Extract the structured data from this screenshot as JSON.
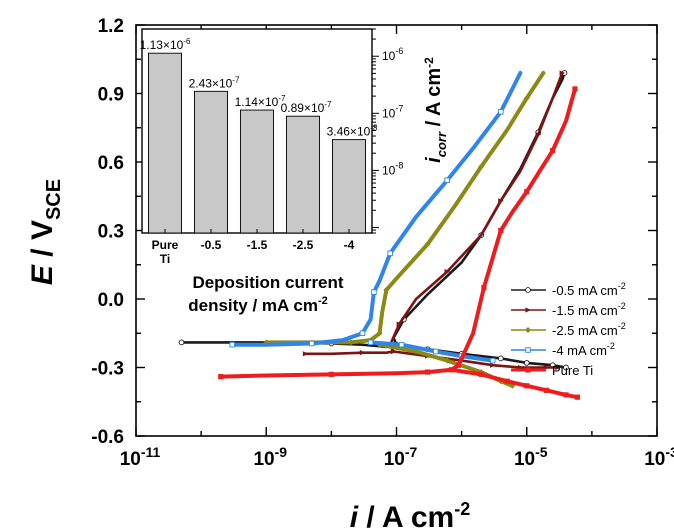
{
  "chart_data": [
    {
      "type": "line",
      "title": "",
      "xlabel": {
        "main": "i",
        "unit": " / A cm",
        "exp": "-2"
      },
      "ylabel": {
        "main": "E",
        "unit": " / V",
        "sub": "SCE"
      },
      "x_scale": "log",
      "xlim": [
        1e-11,
        0.001
      ],
      "ylim": [
        -0.6,
        1.2
      ],
      "x_ticks": [
        1e-11,
        1e-09,
        1e-07,
        1e-05,
        0.001
      ],
      "x_tick_labels": [
        {
          "base": "10",
          "exp": "-11"
        },
        {
          "base": "10",
          "exp": "-9"
        },
        {
          "base": "10",
          "exp": "-7"
        },
        {
          "base": "10",
          "exp": "-5"
        },
        {
          "base": "10",
          "exp": "-3"
        }
      ],
      "y_ticks": [
        -0.6,
        -0.3,
        0.0,
        0.3,
        0.6,
        0.9,
        1.2
      ],
      "y_tick_labels": [
        "-0.6",
        "-0.3",
        "0.0",
        "0.3",
        "0.6",
        "0.9",
        "1.2"
      ],
      "grid": false,
      "legend_position": "right",
      "series": [
        {
          "name": "-0.5 mA cm",
          "name_exp": "-2",
          "color": "#1a1a1a",
          "marker": "open-circle",
          "x": [
            5e-11,
            1e-10,
            1e-09,
            1e-08,
            3e-08,
            7e-08,
            9e-08,
            1e-07,
            9e-08,
            1.3e-07,
            3e-07,
            1e-06,
            2e-06,
            4e-06,
            8e-06,
            1.5e-05,
            2.5e-05,
            3.5e-05,
            3.8e-05
          ],
          "y": [
            -0.19,
            -0.19,
            -0.19,
            -0.195,
            -0.2,
            -0.21,
            -0.205,
            -0.2,
            -0.17,
            -0.09,
            0.02,
            0.16,
            0.28,
            0.43,
            0.57,
            0.73,
            0.88,
            0.96,
            0.99
          ]
        },
        {
          "name": "-0.5 mA cm",
          "name_exp": "-2",
          "color": "#1a1a1a",
          "marker": "open-circle",
          "legend": false,
          "x": [
            1e-07,
            3e-07,
            1e-06,
            4e-06,
            1e-05,
            2.5e-05,
            4e-05
          ],
          "y": [
            -0.2,
            -0.22,
            -0.24,
            -0.26,
            -0.28,
            -0.29,
            -0.3
          ]
        },
        {
          "name": "-1.5 mA cm",
          "name_exp": "-2",
          "color": "#7d1414",
          "marker": "triangle-right",
          "x": [
            4e-09,
            1e-08,
            3e-08,
            7e-08,
            9e-08,
            8e-08,
            1.1e-07,
            2e-07,
            6e-07,
            2e-06,
            4e-06,
            8e-06,
            1.5e-05,
            2.5e-05,
            3.5e-05
          ],
          "y": [
            -0.24,
            -0.24,
            -0.235,
            -0.235,
            -0.23,
            -0.2,
            -0.11,
            0.0,
            0.12,
            0.28,
            0.43,
            0.56,
            0.72,
            0.88,
            0.99
          ]
        },
        {
          "name": "-1.5 mA cm",
          "name_exp": "-2",
          "color": "#7d1414",
          "marker": "triangle-right",
          "legend": false,
          "x": [
            9e-08,
            3e-07,
            1e-06,
            3e-06,
            8e-06,
            2e-05,
            3e-05
          ],
          "y": [
            -0.23,
            -0.25,
            -0.27,
            -0.29,
            -0.3,
            -0.3,
            -0.3
          ]
        },
        {
          "name": "-2.5 mA cm",
          "name_exp": "-2",
          "color": "#8a8a14",
          "marker": "diamond",
          "x": [
            1e-09,
            5e-09,
            2e-08,
            4e-08,
            5.5e-08,
            6e-08,
            7e-08,
            1e-07,
            3e-07,
            8e-07,
            2e-06,
            5e-06,
            1e-05,
            1.8e-05
          ],
          "y": [
            -0.19,
            -0.19,
            -0.19,
            -0.18,
            -0.15,
            -0.06,
            0.04,
            0.09,
            0.24,
            0.41,
            0.58,
            0.74,
            0.88,
            0.99
          ]
        },
        {
          "name": "-2.5 mA cm",
          "name_exp": "-2",
          "color": "#8a8a14",
          "marker": "diamond",
          "legend": false,
          "x": [
            5.5e-08,
            2e-07,
            6e-07,
            2e-06,
            4e-06,
            6e-06
          ],
          "y": [
            -0.2,
            -0.23,
            -0.27,
            -0.32,
            -0.36,
            -0.38
          ]
        },
        {
          "name": "-4 mA cm",
          "name_exp": "-2",
          "color": "#2f86e8",
          "marker": "open-square",
          "x": [
            3e-10,
            1e-09,
            5e-09,
            1.5e-08,
            3e-08,
            4e-08,
            4.5e-08,
            5.5e-08,
            8e-08,
            2e-07,
            6e-07,
            1.5e-06,
            4e-06,
            8e-06
          ],
          "y": [
            -0.2,
            -0.2,
            -0.195,
            -0.18,
            -0.15,
            -0.09,
            0.03,
            0.08,
            0.2,
            0.36,
            0.52,
            0.66,
            0.82,
            0.99
          ]
        },
        {
          "name": "-4 mA cm",
          "name_exp": "-2",
          "color": "#2f86e8",
          "marker": "open-square",
          "legend": false,
          "x": [
            4e-08,
            1.2e-07,
            4e-07,
            1e-06,
            3e-06
          ],
          "y": [
            -0.19,
            -0.2,
            -0.23,
            -0.25,
            -0.27
          ]
        },
        {
          "name": "Pure Ti",
          "color": "#ee1c1c",
          "marker": "filled-square",
          "x": [
            2e-10,
            1e-09,
            1e-08,
            1e-07,
            3e-07,
            7e-07,
            9e-07,
            1.5e-06,
            2.2e-06,
            3e-06,
            4e-06,
            6e-06,
            1e-05,
            1.5e-05,
            2.5e-05,
            4e-05,
            5.5e-05
          ],
          "y": [
            -0.34,
            -0.335,
            -0.33,
            -0.325,
            -0.32,
            -0.31,
            -0.29,
            -0.15,
            0.05,
            0.18,
            0.3,
            0.38,
            0.47,
            0.55,
            0.65,
            0.78,
            0.92
          ]
        },
        {
          "name": "Pure Ti",
          "color": "#ee1c1c",
          "marker": "filled-square",
          "legend": false,
          "x": [
            7e-07,
            2e-06,
            5e-06,
            1e-05,
            2e-05,
            4e-05,
            6e-05
          ],
          "y": [
            -0.31,
            -0.33,
            -0.36,
            -0.38,
            -0.4,
            -0.42,
            -0.43
          ]
        }
      ]
    },
    {
      "type": "bar",
      "title": "",
      "xlabel": {
        "line1": "Deposition current",
        "line2": "density / mA cm",
        "exp": "-2"
      },
      "ylabel": {
        "main": "i",
        "sub": "corr",
        "unit": " / A cm",
        "exp": "-2"
      },
      "y_scale": "log",
      "ylim": [
        8e-10,
        3e-06
      ],
      "y_ticks": [
        1e-08,
        1e-07,
        1e-06
      ],
      "y_tick_labels": [
        {
          "base": "10",
          "exp": "-8"
        },
        {
          "base": "10",
          "exp": "-7"
        },
        {
          "base": "10",
          "exp": "-6"
        }
      ],
      "categories": [
        {
          "line1": "Pure",
          "line2": "Ti"
        },
        {
          "line1": "-0.5",
          "line2": ""
        },
        {
          "line1": "-1.5",
          "line2": ""
        },
        {
          "line1": "-2.5",
          "line2": ""
        },
        {
          "line1": "-4",
          "line2": ""
        }
      ],
      "values": [
        1.13e-06,
        2.43e-07,
        1.14e-07,
        8.9e-08,
        3.46e-08
      ],
      "value_labels": [
        {
          "mant": "1.13×10",
          "exp": "-6"
        },
        {
          "mant": "2.43×10",
          "exp": "-7"
        },
        {
          "mant": "1.14×10",
          "exp": "-7"
        },
        {
          "mant": "0.89×10",
          "exp": "-7"
        },
        {
          "mant": "3.46×10",
          "exp": "-8"
        }
      ],
      "bar_color": "#c8c8c8"
    }
  ]
}
